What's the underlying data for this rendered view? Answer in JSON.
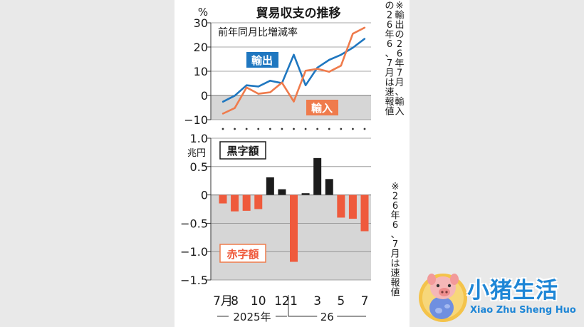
{
  "title": "貿易収支の推移",
  "note_top": "※輸出の26年7月、輸入の26年6、7月は速報値",
  "note_bottom": "※26年6、7月は速報値",
  "colors": {
    "export": "#1f77c0",
    "import": "#ef7b4c",
    "surplus": "#1c1c1c",
    "deficit": "#ef5a3c",
    "panel": "#ffffff",
    "shade": "#d6d6d6"
  },
  "x_labels": [
    {
      "index": 0,
      "label": "7月"
    },
    {
      "index": 1,
      "label": "8"
    },
    {
      "index": 3,
      "label": "10"
    },
    {
      "index": 5,
      "label": "12"
    },
    {
      "index": 6,
      "label": "1"
    },
    {
      "index": 8,
      "label": "3"
    },
    {
      "index": 10,
      "label": "5"
    },
    {
      "index": 12,
      "label": "7"
    }
  ],
  "x_groups": [
    {
      "label": "2025年",
      "from": 0,
      "to": 5
    },
    {
      "label": "26",
      "from": 6,
      "to": 12
    }
  ],
  "chart_data": [
    {
      "type": "line",
      "title": "前年同月比増減率",
      "ylabel": "%",
      "ylim": [
        -10,
        30
      ],
      "yticks": [
        {
          "value": 30,
          "label": "30"
        },
        {
          "value": 20,
          "label": "20"
        },
        {
          "value": 10,
          "label": "10"
        },
        {
          "value": 0,
          "label": "0"
        },
        {
          "value": -10,
          "label": "−10"
        }
      ],
      "shaded_below_zero": true,
      "x": [
        "2025-07",
        "2025-08",
        "2025-09",
        "2025-10",
        "2025-11",
        "2025-12",
        "2026-01",
        "2026-02",
        "2026-03",
        "2026-04",
        "2026-05",
        "2026-06",
        "2026-07"
      ],
      "series": [
        {
          "name": "輸出",
          "values": [
            -2.6,
            -0.1,
            4.2,
            3.7,
            6.1,
            5.1,
            16.8,
            4.2,
            11.5,
            14.7,
            16.8,
            19.7,
            23.4
          ]
        },
        {
          "name": "輸入",
          "values": [
            -7.5,
            -5.2,
            3.3,
            0.7,
            1.3,
            5.3,
            -2.5,
            10.2,
            11.0,
            9.8,
            12.3,
            25.5,
            28.0
          ]
        }
      ]
    },
    {
      "type": "bar",
      "ylabel": "兆円",
      "ylim": [
        -1.5,
        1.0
      ],
      "yticks": [
        {
          "value": 1.0,
          "label": "1.0"
        },
        {
          "value": 0.5,
          "label": "0.5"
        },
        {
          "value": 0,
          "label": "0"
        },
        {
          "value": -0.5,
          "label": "−0.5"
        },
        {
          "value": -1.0,
          "label": "−1.0"
        },
        {
          "value": -1.5,
          "label": "−1.5"
        }
      ],
      "x": [
        "2025-07",
        "2025-08",
        "2025-09",
        "2025-10",
        "2025-11",
        "2025-12",
        "2026-01",
        "2026-02",
        "2026-03",
        "2026-04",
        "2026-05",
        "2026-06",
        "2026-07"
      ],
      "values": [
        -0.15,
        -0.29,
        -0.28,
        -0.25,
        0.31,
        0.1,
        -1.18,
        0.03,
        0.65,
        0.28,
        -0.4,
        -0.42,
        -0.64
      ],
      "legend": [
        {
          "name": "黒字額",
          "kind": "surplus"
        },
        {
          "name": "赤字額",
          "kind": "deficit"
        }
      ]
    }
  ],
  "watermark": {
    "title": "小猪生活",
    "subtitle": "Xiao Zhu Sheng Huo"
  }
}
